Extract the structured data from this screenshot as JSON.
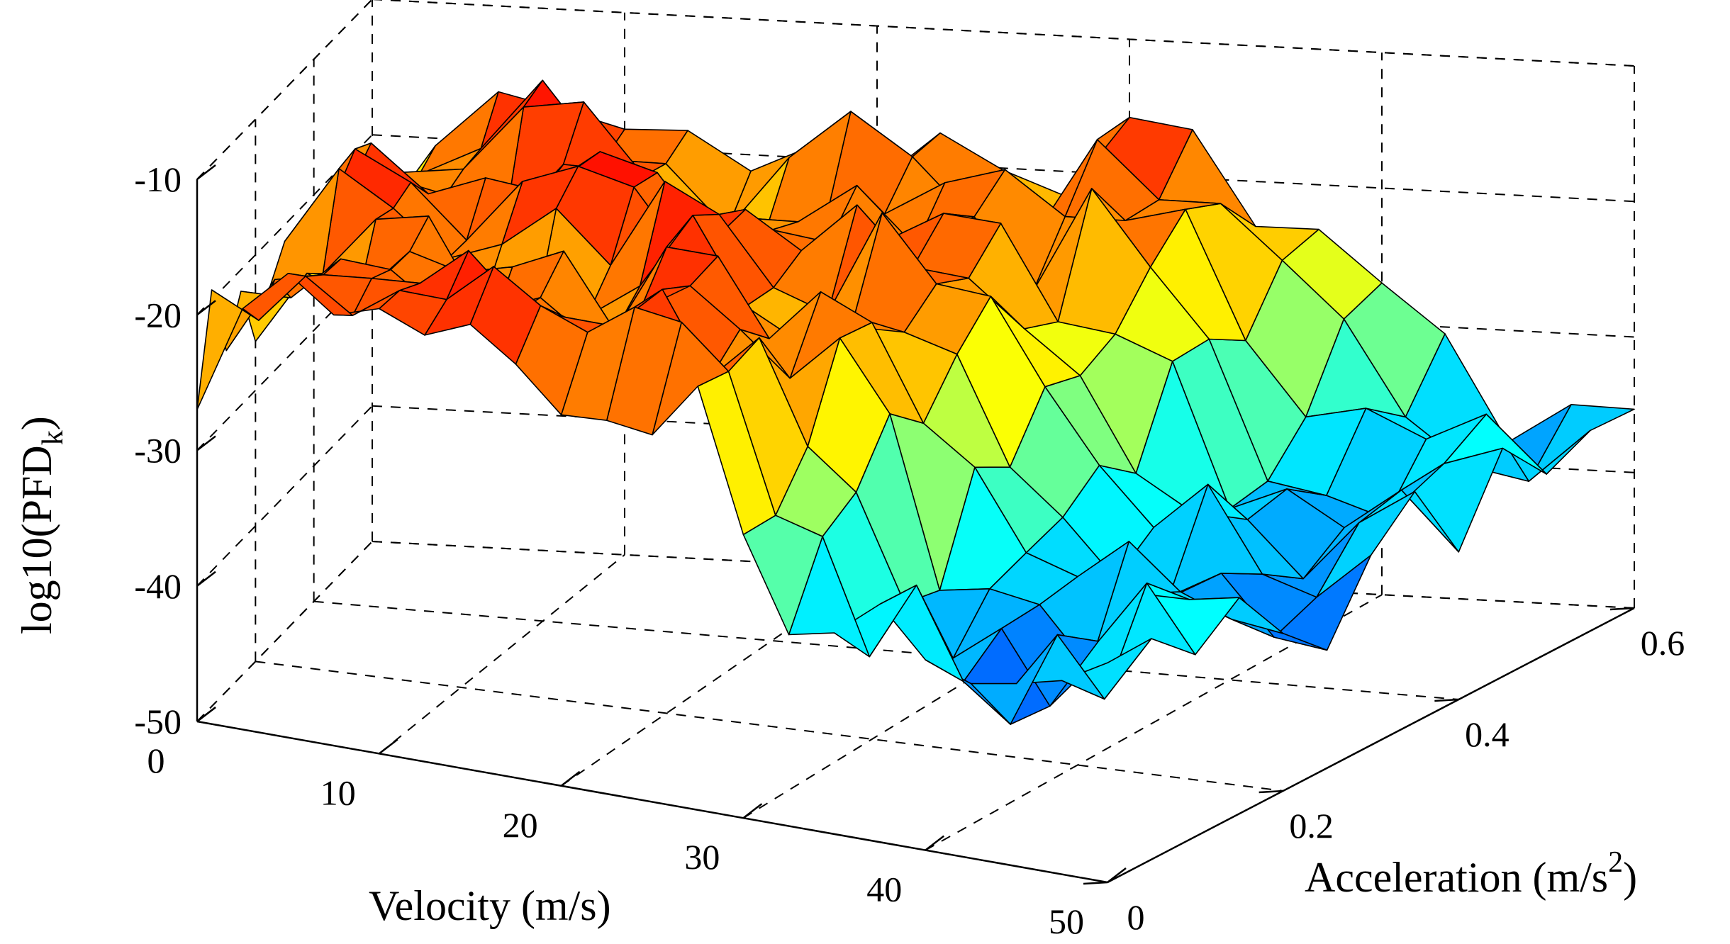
{
  "chart_data": {
    "type": "surface3d",
    "title": "",
    "xlabel": "Velocity (m/s)",
    "ylabel": "Acceleration (m/s",
    "ylabel_sup": "2",
    "ylabel_close": ")",
    "zlabel": "log10(PFD",
    "zlabel_sub": "k",
    "zlabel_close": ")",
    "xlim": [
      0,
      50
    ],
    "ylim": [
      0,
      0.6
    ],
    "zlim": [
      -50,
      -10
    ],
    "x_ticks": [
      "0",
      "10",
      "20",
      "30",
      "40",
      "50"
    ],
    "y_ticks": [
      "0",
      "0.2",
      "0.4",
      "0.6"
    ],
    "z_ticks": [
      "-50",
      "-40",
      "-30",
      "-20",
      "-10"
    ],
    "grid": true,
    "colormap": "jet",
    "description_values": {
      "velocity_grid": [
        0,
        2.5,
        5,
        7.5,
        10,
        12.5,
        15,
        17.5,
        20,
        22.5,
        25,
        27.5,
        30,
        32.5,
        35,
        37.5,
        40,
        42.5,
        45,
        47.5,
        50
      ],
      "acceleration_grid": [
        0,
        0.05,
        0.1,
        0.15,
        0.2,
        0.25,
        0.3,
        0.35,
        0.4,
        0.45,
        0.5,
        0.55,
        0.6
      ],
      "low_velocity_plateau_log10_pfd": -19,
      "high_velocity_plateau_log10_pfd": -37,
      "transition_velocity_low_acc": 30,
      "transition_velocity_high_acc": 40
    }
  }
}
